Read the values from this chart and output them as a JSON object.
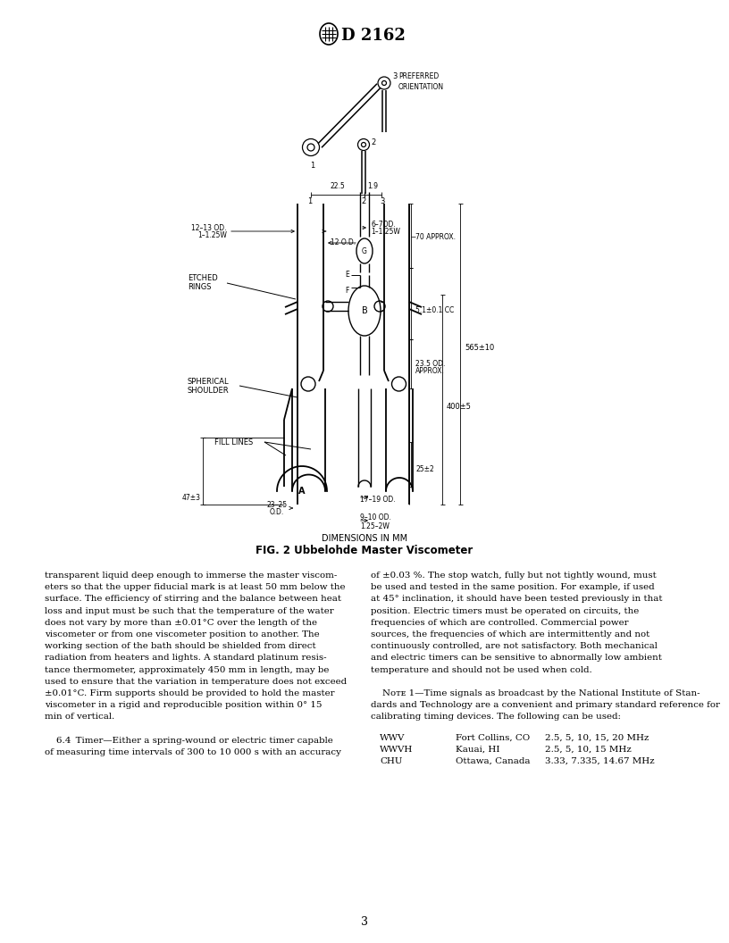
{
  "page_width": 8.16,
  "page_height": 10.56,
  "background_color": "#ffffff",
  "page_number": "3",
  "fig_caption_top": "DIMENSIONS IN MM",
  "fig_caption_bottom": "FIG. 2 Ubbelohde Master Viscometer",
  "left_column_text": [
    "transparent liquid deep enough to immerse the master viscom-",
    "eters so that the upper fiducial mark is at least 50 mm below the",
    "surface. The efficiency of stirring and the balance between heat",
    "loss and input must be such that the temperature of the water",
    "does not vary by more than ±0.01°C over the length of the",
    "viscometer or from one viscometer position to another. The",
    "working section of the bath should be shielded from direct",
    "radiation from heaters and lights. A standard platinum resis-",
    "tance thermometer, approximately 450 mm in length, may be",
    "used to ensure that the variation in temperature does not exceed",
    "±0.01°C. Firm supports should be provided to hold the master",
    "viscometer in a rigid and reproducible position within 0° 15",
    "min of vertical.",
    "",
    "    6.4  Timer—Either a spring-wound or electric timer capable",
    "of measuring time intervals of 300 to 10 000 s with an accuracy"
  ],
  "right_column_text": [
    "of ±0.03 %. The stop watch, fully but not tightly wound, must",
    "be used and tested in the same position. For example, if used",
    "at 45° inclination, it should have been tested previously in that",
    "position. Electric timers must be operated on circuits, the",
    "frequencies of which are controlled. Commercial power",
    "sources, the frequencies of which are intermittently and not",
    "continuously controlled, are not satisfactory. Both mechanical",
    "and electric timers can be sensitive to abnormally low ambient",
    "temperature and should not be used when cold.",
    "",
    "    Nᴏᴛᴇ 1—Time signals as broadcast by the National Institute of Stan-",
    "dards and Technology are a convenient and primary standard reference for",
    "calibrating timing devices. The following can be used:"
  ],
  "note_table": [
    [
      "WWV",
      "Fort Collins, CO",
      "2.5, 5, 10, 15, 20 MHz"
    ],
    [
      "WWVH",
      "Kauai, HI",
      "2.5, 5, 10, 15 MHz"
    ],
    [
      "CHU",
      "Ottawa, Canada",
      "3.33, 7.335, 14.67 MHz"
    ]
  ]
}
